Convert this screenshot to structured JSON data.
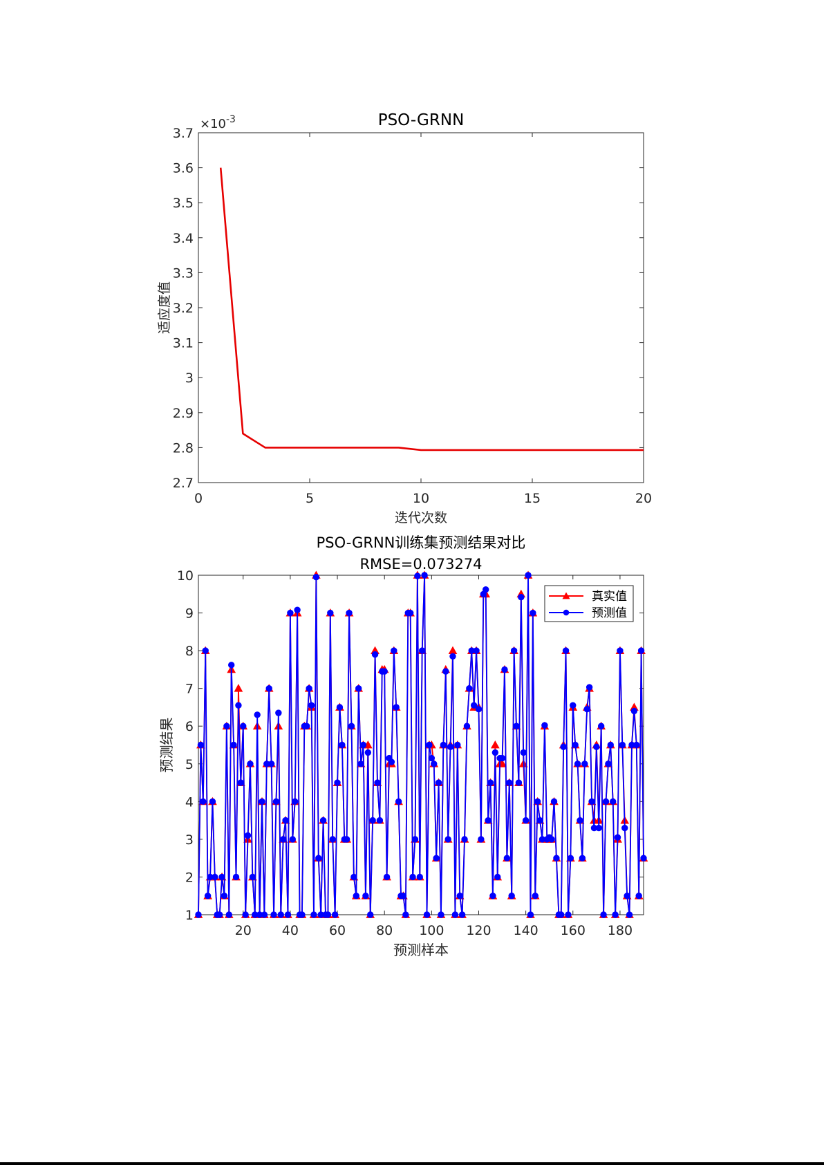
{
  "chart_data": [
    {
      "type": "line",
      "title": "PSO-GRNN",
      "xlabel": "迭代次数",
      "ylabel": "适应度值",
      "exponent_label": "×10",
      "exponent_power": "-3",
      "xlim": [
        0,
        20
      ],
      "ylim": [
        2.7,
        3.7
      ],
      "xticks": [
        0,
        5,
        10,
        15,
        20
      ],
      "yticks": [
        2.7,
        2.8,
        2.9,
        3.0,
        3.1,
        3.2,
        3.3,
        3.4,
        3.5,
        3.6,
        3.7
      ],
      "ytick_labels": [
        "2.7",
        "2.8",
        "2.9",
        "3",
        "3.1",
        "3.2",
        "3.3",
        "3.4",
        "3.5",
        "3.6",
        "3.7"
      ],
      "grid": false,
      "color": "#e60000",
      "x": [
        1,
        2,
        3,
        4,
        5,
        6,
        7,
        8,
        9,
        10,
        11,
        12,
        13,
        14,
        15,
        16,
        17,
        18,
        19,
        20
      ],
      "y": [
        3.6,
        2.84,
        2.8,
        2.8,
        2.8,
        2.8,
        2.8,
        2.8,
        2.8,
        2.793,
        2.793,
        2.793,
        2.793,
        2.793,
        2.793,
        2.793,
        2.793,
        2.793,
        2.793,
        2.793
      ]
    },
    {
      "type": "line",
      "title": "PSO-GRNN训练集预测结果对比",
      "subtitle": "RMSE=0.073274",
      "xlabel": "预测样本",
      "ylabel": "预测结果",
      "xlim": [
        1,
        190
      ],
      "ylim": [
        1,
        10
      ],
      "xticks": [
        20,
        40,
        60,
        80,
        100,
        120,
        140,
        160,
        180
      ],
      "yticks": [
        1,
        2,
        3,
        4,
        5,
        6,
        7,
        8,
        9,
        10
      ],
      "grid": false,
      "legend_position": "top-right",
      "series": [
        {
          "name": "真实值",
          "color": "#ff0000",
          "marker": "triangle",
          "values": [
            1,
            5.5,
            4,
            8,
            1.5,
            2,
            4,
            2,
            1,
            1,
            2,
            1.5,
            6,
            1,
            7.5,
            5.5,
            2,
            7,
            4.5,
            6,
            1,
            3,
            5,
            2,
            1,
            6,
            1,
            4,
            1,
            5,
            7,
            5,
            1,
            4,
            6,
            1,
            3,
            3.5,
            1,
            9,
            3,
            4,
            9,
            1,
            1,
            6,
            6,
            7,
            6.5,
            1,
            10,
            2.5,
            1,
            3.5,
            1,
            1,
            9,
            3,
            1,
            4.5,
            6.5,
            5.5,
            3,
            3,
            9,
            6,
            2,
            1.5,
            7,
            5,
            5.5,
            1.5,
            5.5,
            1,
            3.5,
            8,
            4.5,
            3.5,
            7.5,
            7.5,
            2,
            5,
            5,
            8,
            6.5,
            4,
            1.5,
            1.5,
            1,
            9,
            9,
            2,
            3,
            10,
            2,
            8,
            10,
            1,
            5.5,
            5.5,
            5,
            2.5,
            4.5,
            1,
            5.5,
            7.5,
            3,
            5.5,
            8,
            1,
            5.5,
            1.5,
            1,
            3,
            6,
            7,
            8,
            6.5,
            8,
            6.5,
            3,
            9.5,
            9.5,
            3.5,
            4.5,
            1.5,
            5.5,
            2,
            5,
            5,
            7.5,
            2.5,
            4.5,
            1.5,
            8,
            6,
            4.5,
            9.5,
            5,
            3.5,
            10,
            1,
            9,
            1.5,
            4,
            3.5,
            3,
            6,
            3,
            3,
            3,
            4,
            2.5,
            1,
            1,
            5.5,
            8,
            1,
            2.5,
            6.5,
            5.5,
            5,
            3.5,
            2.5,
            5,
            6.5,
            7,
            4,
            3.5,
            5.5,
            3.5,
            6,
            1,
            4,
            5,
            5.5,
            4,
            1,
            3,
            8,
            5.5,
            3.5,
            1.5,
            1,
            5.5,
            6.5,
            5.5,
            1.5,
            8,
            2.5
          ]
        },
        {
          "name": "预测值",
          "color": "#0000ff",
          "marker": "circle",
          "values": [
            1,
            5.5,
            4,
            8,
            1.5,
            2,
            4,
            2,
            1,
            1,
            2,
            1.5,
            6,
            1,
            7.62,
            5.5,
            2,
            6.55,
            4.5,
            6,
            1,
            3.1,
            5,
            2,
            1,
            6.3,
            1,
            4,
            1,
            5,
            7,
            5,
            1,
            4,
            6.35,
            1,
            3,
            3.5,
            1,
            9,
            3,
            4,
            9.08,
            1,
            1,
            6,
            6,
            7,
            6.55,
            1,
            9.95,
            2.5,
            1,
            3.5,
            1,
            1,
            9,
            3,
            1,
            4.5,
            6.5,
            5.5,
            3,
            3,
            9,
            6,
            2,
            1.5,
            7,
            5,
            5.5,
            1.5,
            5.3,
            1,
            3.5,
            7.9,
            4.5,
            3.5,
            7.45,
            7.45,
            2,
            5.15,
            5.05,
            8,
            6.5,
            4,
            1.5,
            1.5,
            1,
            9,
            9,
            2,
            3,
            9.98,
            2,
            8,
            10,
            1,
            5.5,
            5.15,
            5,
            2.5,
            4.5,
            1,
            5.5,
            7.45,
            3,
            5.45,
            7.85,
            1,
            5.5,
            1.5,
            1,
            3,
            6,
            7,
            8,
            6.55,
            8,
            6.45,
            3,
            9.5,
            9.62,
            3.5,
            4.5,
            1.5,
            5.3,
            2,
            5.15,
            5.15,
            7.5,
            2.5,
            4.5,
            1.5,
            8,
            6,
            4.5,
            9.42,
            5.3,
            3.5,
            10,
            1,
            9,
            1.5,
            4,
            3.5,
            3,
            6.02,
            3,
            3.05,
            3,
            4,
            2.5,
            1,
            1,
            5.45,
            8,
            1,
            2.5,
            6.55,
            5.5,
            5,
            3.5,
            2.5,
            5,
            6.45,
            7.03,
            4,
            3.3,
            5.45,
            3.3,
            6,
            1,
            4,
            5,
            5.5,
            4,
            1,
            3.05,
            8,
            5.5,
            3.3,
            1.5,
            1,
            5.5,
            6.4,
            5.5,
            1.5,
            8,
            2.5
          ]
        }
      ]
    }
  ]
}
